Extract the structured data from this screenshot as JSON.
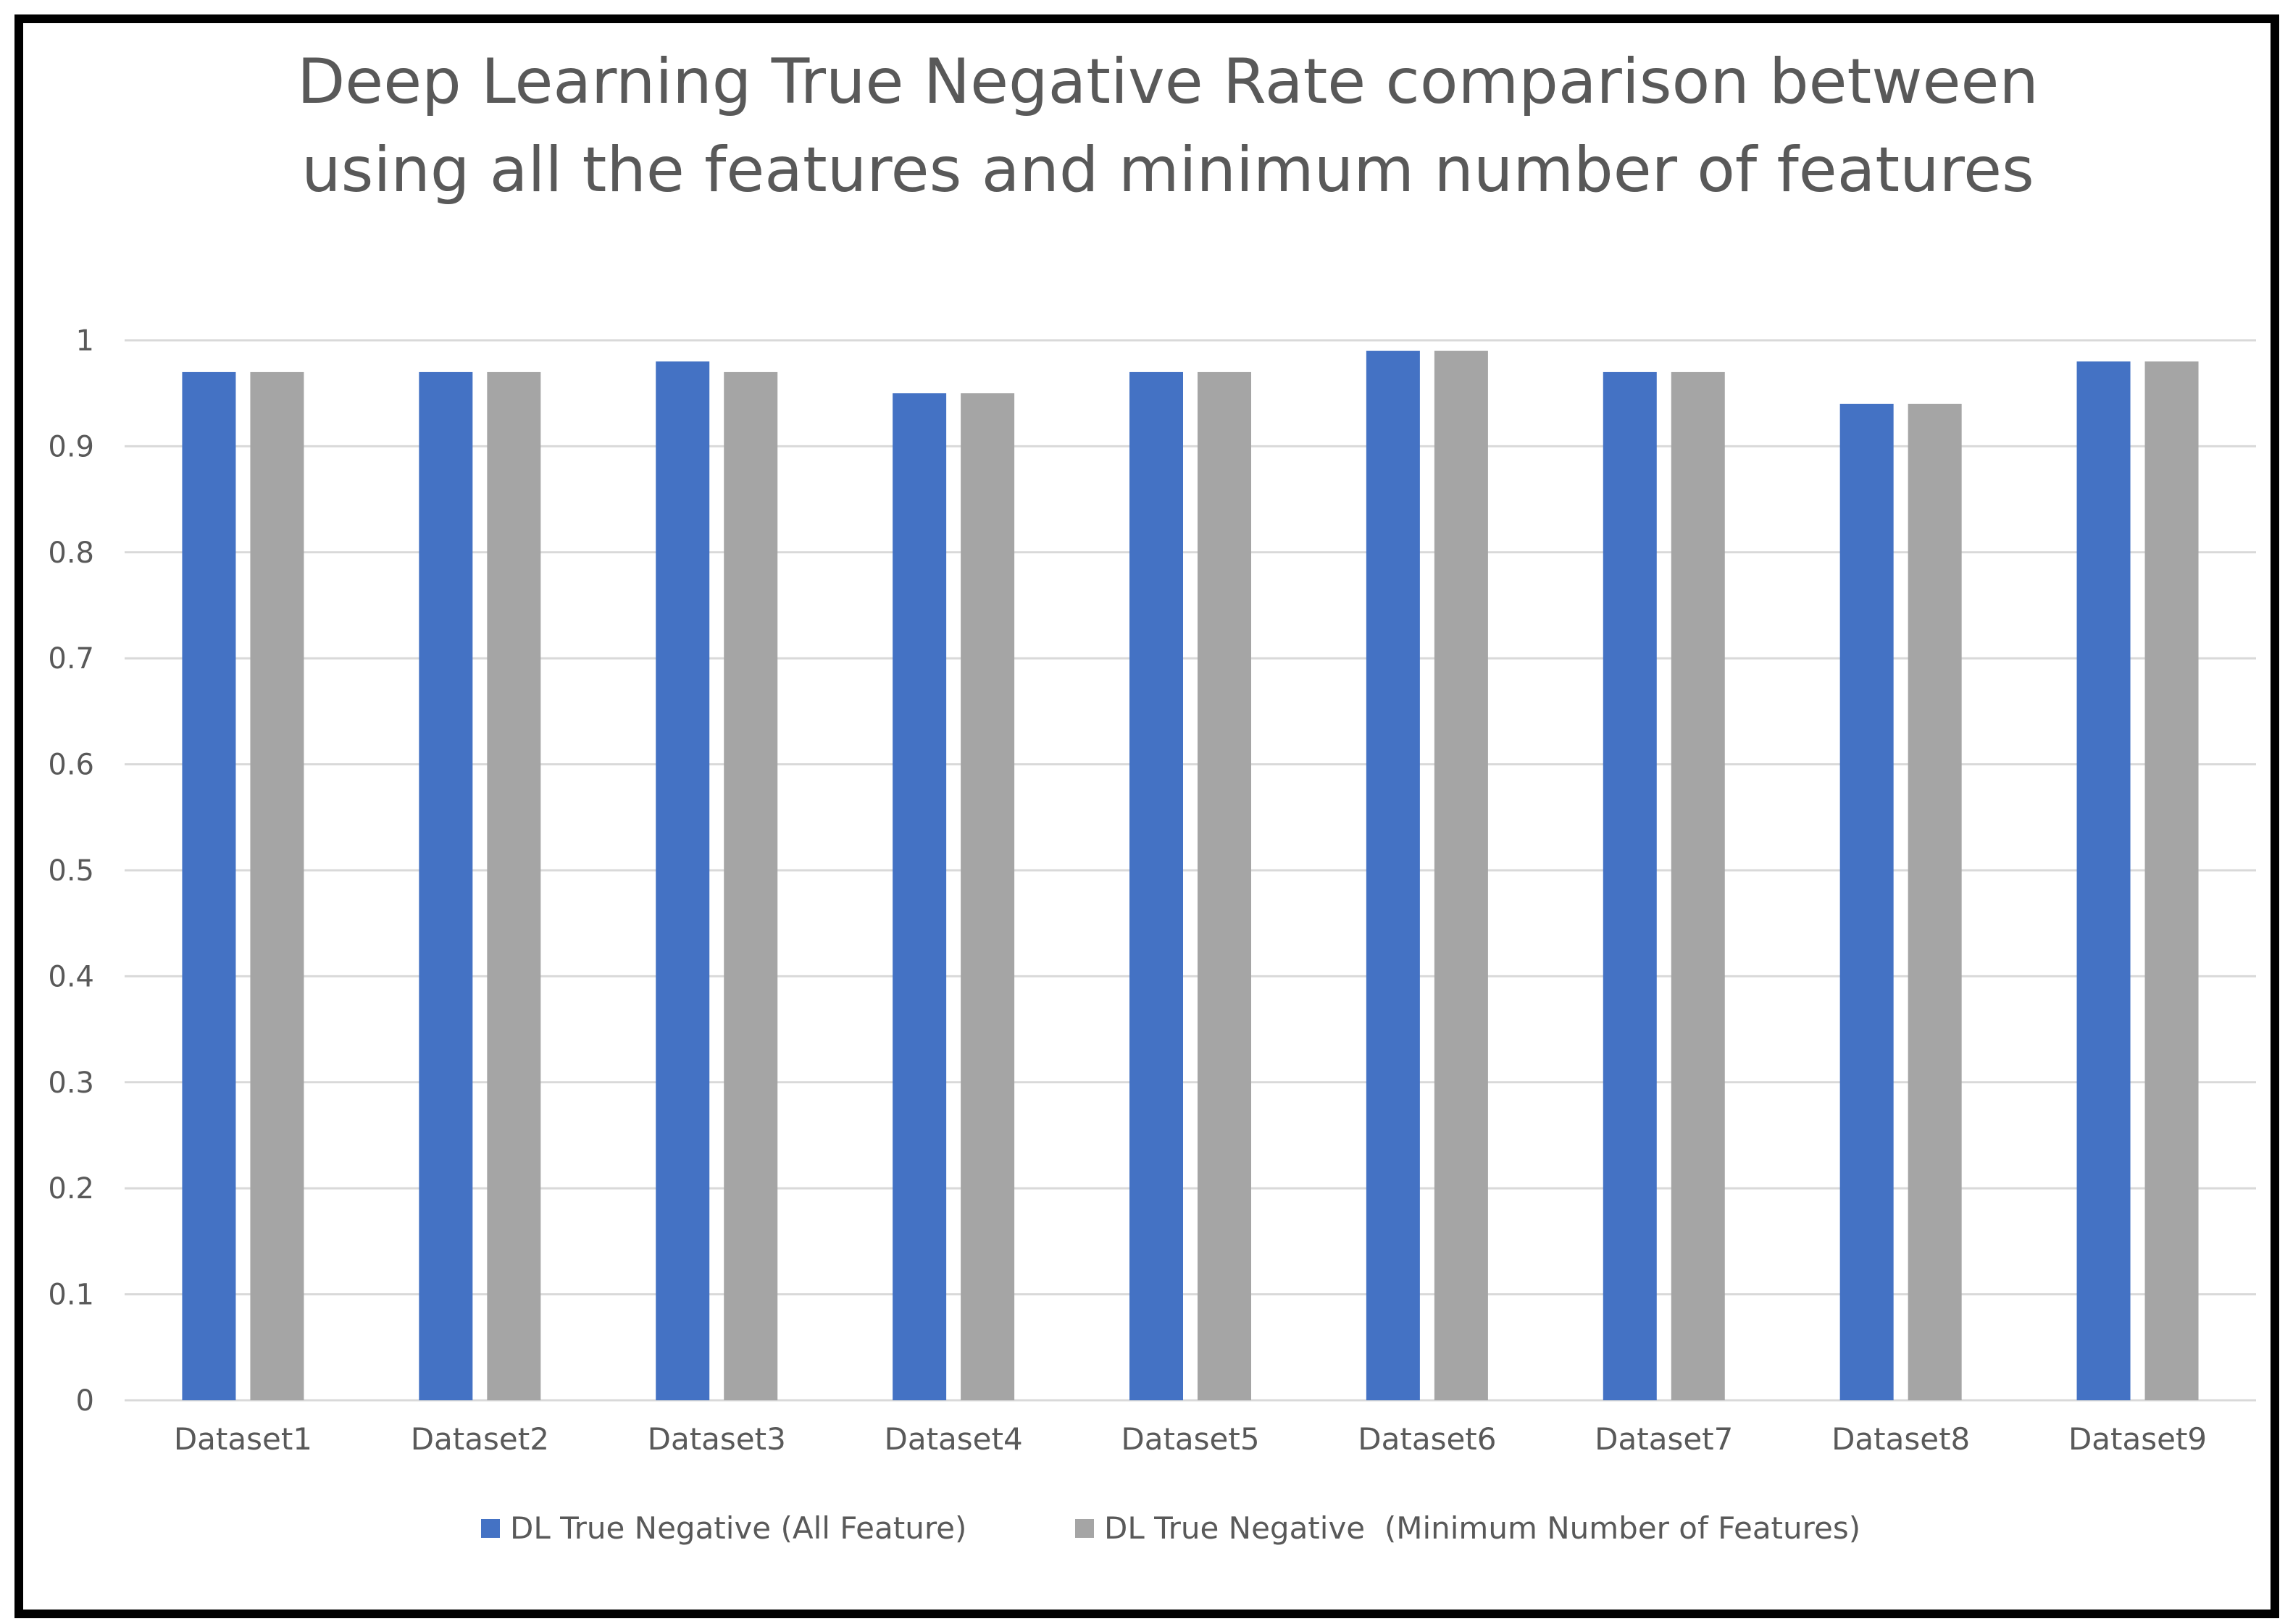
{
  "chart_data": {
    "type": "bar",
    "title_lines": [
      "Deep Learning True Negative Rate comparison between",
      "using all the features and minimum number of features"
    ],
    "categories": [
      "Dataset1",
      "Dataset2",
      "Dataset3",
      "Dataset4",
      "Dataset5",
      "Dataset6",
      "Dataset7",
      "Dataset8",
      "Dataset9"
    ],
    "series": [
      {
        "name": "DL True Negative (All Feature)",
        "color": "#4472c4",
        "values": [
          0.97,
          0.97,
          0.98,
          0.95,
          0.97,
          0.99,
          0.97,
          0.94,
          0.98
        ]
      },
      {
        "name": "DL True Negative  (Minimum Number of Features)",
        "color": "#a5a5a5",
        "values": [
          0.97,
          0.97,
          0.97,
          0.95,
          0.97,
          0.99,
          0.97,
          0.94,
          0.98
        ]
      }
    ],
    "y_ticks": [
      "0",
      "0.1",
      "0.2",
      "0.3",
      "0.4",
      "0.5",
      "0.6",
      "0.7",
      "0.8",
      "0.9",
      "1"
    ],
    "ylim": [
      0,
      1
    ],
    "xlabel": "",
    "ylabel": "",
    "grid": true,
    "legend_position": "bottom"
  }
}
